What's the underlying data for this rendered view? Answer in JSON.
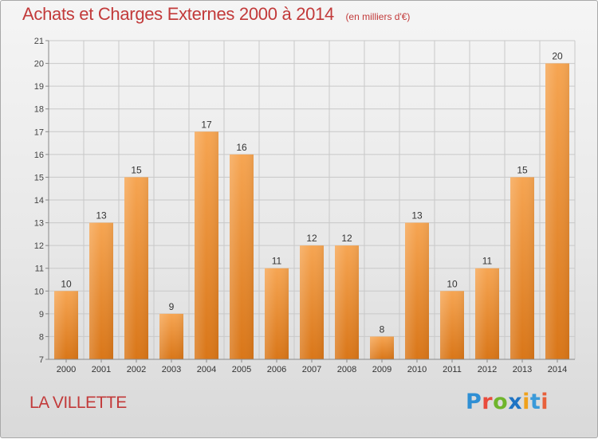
{
  "header": {
    "title": "Achats et Charges Externes 2000 à 2014",
    "subtitle": "(en milliers d'€)"
  },
  "footer": {
    "town": "LA VILLETTE",
    "logo_text": "Proxiti",
    "logo_letters": [
      "P",
      "r",
      "o",
      "x",
      "i",
      "t",
      "i"
    ]
  },
  "colors": {
    "title": "#c23a3a",
    "bar_light": "#f6a552",
    "bar_dark": "#e07e1e",
    "grid": "#c8c8c8"
  },
  "chart_data": {
    "type": "bar",
    "title": "Achats et Charges Externes 2000 à 2014",
    "subtitle": "(en milliers d'€)",
    "categories": [
      "2000",
      "2001",
      "2002",
      "2003",
      "2004",
      "2005",
      "2006",
      "2007",
      "2008",
      "2009",
      "2010",
      "2011",
      "2012",
      "2013",
      "2014"
    ],
    "values": [
      10,
      13,
      15,
      9,
      17,
      16,
      11,
      12,
      12,
      8,
      13,
      10,
      11,
      15,
      20
    ],
    "ylim": [
      7,
      21
    ],
    "yticks": [
      7,
      8,
      9,
      10,
      11,
      12,
      13,
      14,
      15,
      16,
      17,
      18,
      19,
      20,
      21
    ],
    "grid": true,
    "data_labels": true
  }
}
